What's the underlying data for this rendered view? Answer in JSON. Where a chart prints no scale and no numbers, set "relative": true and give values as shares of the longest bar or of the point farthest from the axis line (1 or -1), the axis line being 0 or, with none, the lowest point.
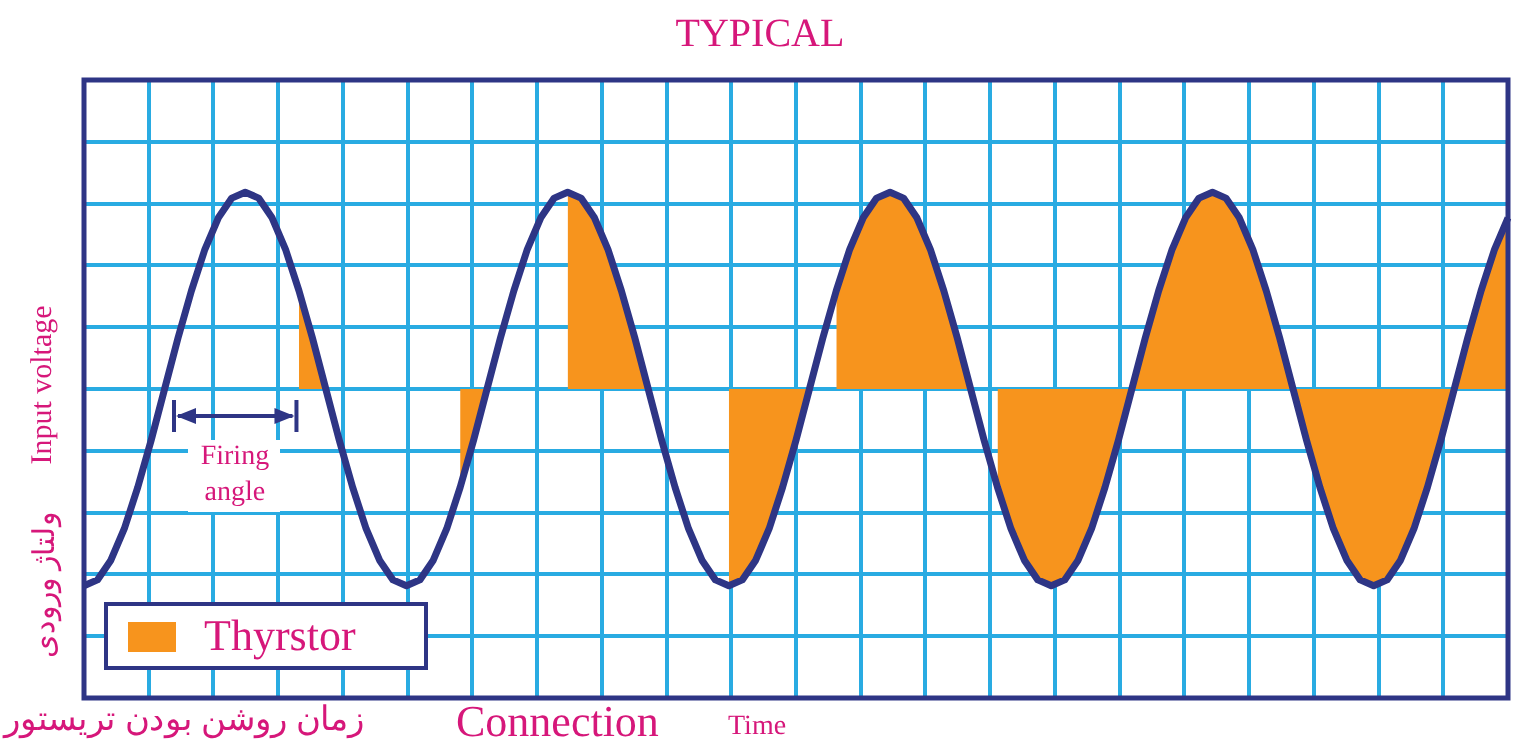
{
  "chart_data": {
    "type": "line",
    "title": "TYPICAL",
    "xlabel": "Time",
    "ylabel": "Input voltage",
    "relative": true,
    "grid": true,
    "tick_labels": false,
    "legend": "bottom left",
    "marker": "none",
    "categories": [
      null,
      null,
      null,
      null,
      null,
      null,
      null,
      null,
      null,
      null,
      null,
      null,
      null,
      null,
      null,
      null,
      null,
      null,
      null,
      null,
      null,
      null,
      null,
      null,
      null,
      null,
      null,
      null,
      null,
      null,
      null,
      null,
      null,
      null,
      null,
      null,
      null,
      null,
      null,
      null,
      null,
      null,
      null,
      null,
      null,
      null,
      null,
      null,
      null,
      null,
      null,
      null,
      null,
      null,
      null,
      null,
      null,
      null,
      null,
      null,
      null,
      null,
      null,
      null,
      null,
      null,
      null,
      null,
      null,
      null,
      null,
      null,
      null,
      null,
      null,
      null,
      null,
      null,
      null,
      null,
      null,
      null,
      null,
      null,
      null,
      null,
      null,
      null,
      null,
      null,
      null,
      null,
      null,
      null,
      null,
      null,
      null,
      null,
      null,
      null,
      null,
      null,
      null,
      null,
      null,
      null,
      null
    ],
    "series": [
      {
        "color": "#2e3585",
        "values": [
          -1,
          -0.97,
          -0.87,
          -0.71,
          -0.5,
          -0.26,
          0,
          0.26,
          0.5,
          0.71,
          0.87,
          0.97,
          1,
          0.97,
          0.87,
          0.71,
          0.5,
          0.26,
          0,
          -0.26,
          -0.5,
          -0.71,
          -0.87,
          -0.97,
          -1,
          -0.97,
          -0.87,
          -0.71,
          -0.5,
          -0.26,
          0,
          0.26,
          0.5,
          0.71,
          0.87,
          0.97,
          1,
          0.97,
          0.87,
          0.71,
          0.5,
          0.26,
          0,
          -0.26,
          -0.5,
          -0.71,
          -0.87,
          -0.97,
          -1,
          -0.97,
          -0.87,
          -0.71,
          -0.5,
          -0.26,
          0,
          0.26,
          0.5,
          0.71,
          0.87,
          0.97,
          1,
          0.97,
          0.87,
          0.71,
          0.5,
          0.26,
          0,
          -0.26,
          -0.5,
          -0.71,
          -0.87,
          -0.97,
          -1,
          -0.97,
          -0.87,
          -0.71,
          -0.5,
          -0.26,
          0,
          0.26,
          0.5,
          0.71,
          0.87,
          0.97,
          1,
          0.97,
          0.87,
          0.71,
          0.5,
          0.26,
          0,
          -0.26,
          -0.5,
          -0.71,
          -0.87,
          -0.97,
          -1,
          -0.97,
          -0.87,
          -0.71,
          -0.5,
          -0.26,
          0,
          0.26,
          0.5,
          0.71,
          0.87
        ]
      },
      {
        "type": "area",
        "name": "Thyrstor",
        "color": "#f7941d",
        "values": [
          null,
          null,
          null,
          null,
          null,
          null,
          null,
          null,
          null,
          null,
          null,
          null,
          null,
          null,
          null,
          null,
          0.5,
          0.26,
          0,
          null,
          null,
          null,
          null,
          null,
          null,
          null,
          null,
          null,
          -0.5,
          -0.26,
          0,
          null,
          null,
          null,
          null,
          null,
          1,
          0.97,
          0.87,
          0.71,
          0.5,
          0.26,
          0,
          null,
          null,
          null,
          null,
          null,
          -1,
          -0.97,
          -0.87,
          -0.71,
          -0.5,
          -0.26,
          0,
          null,
          0.5,
          0.71,
          0.87,
          0.97,
          1,
          0.97,
          0.87,
          0.71,
          0.5,
          0.26,
          0,
          null,
          -0.5,
          -0.71,
          -0.87,
          -0.97,
          -1,
          -0.97,
          -0.87,
          -0.71,
          -0.5,
          -0.26,
          0,
          0.26,
          0.5,
          0.71,
          0.87,
          0.97,
          1,
          0.97,
          0.87,
          0.71,
          0.5,
          0.26,
          0,
          -0.26,
          -0.5,
          -0.71,
          -0.87,
          -0.97,
          -1,
          -0.97,
          -0.87,
          -0.71,
          -0.5,
          -0.26,
          0,
          0.26,
          0.5,
          0.71,
          0.87
        ]
      }
    ],
    "annotations": [
      "ولتاژ ورودی",
      "زمان روشن بودن تریستور",
      "Connection",
      "Firing angle"
    ]
  }
}
